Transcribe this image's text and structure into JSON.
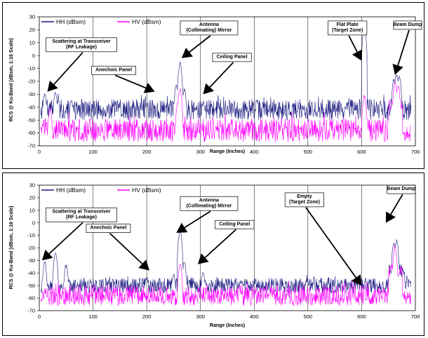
{
  "chart_data": [
    {
      "type": "line",
      "xlabel": "Range (Inches)",
      "ylabel": "RCS @ Ku-Band (dBsm, 1:16 Scale)",
      "xlim": [
        0,
        700
      ],
      "ylim": [
        -70,
        30
      ],
      "x_ticks": [
        0,
        100,
        200,
        300,
        400,
        500,
        600,
        700
      ],
      "y_ticks": [
        30,
        20,
        10,
        0,
        -10,
        -20,
        -30,
        -40,
        -50,
        -60,
        -70
      ],
      "grid": "vertical",
      "legend": "top-left",
      "series": [
        {
          "name": "HH (dBsm)",
          "color": "#1a1a80",
          "floor": -42,
          "spread": 8,
          "peaks": [
            [
              10,
              -28
            ],
            [
              30,
              -27
            ],
            [
              60,
              -33
            ],
            [
              200,
              -36
            ],
            [
              255,
              -22
            ],
            [
              262,
              -5
            ],
            [
              270,
              -25
            ],
            [
              305,
              -35
            ],
            [
              605,
              24
            ],
            [
              660,
              -17
            ],
            [
              665,
              -14
            ],
            [
              670,
              -15
            ]
          ]
        },
        {
          "name": "HV (dBsm)",
          "color": "#ff00ff",
          "floor": -58,
          "spread": 9,
          "peaks": [
            [
              20,
              -40
            ],
            [
              258,
              -35
            ],
            [
              262,
              -25
            ],
            [
              605,
              -30
            ],
            [
              662,
              -20
            ],
            [
              668,
              -22
            ]
          ]
        }
      ],
      "annotations": [
        {
          "lines": [
            "Scattering at Transceiver",
            "(RF Leakage)"
          ],
          "label_x": 15,
          "label_y": 10,
          "target_x": 15,
          "target_y": -28
        },
        {
          "lines": [
            "Anechoic  Panel"
          ],
          "label_x": 100,
          "label_y": -12,
          "target_x": 215,
          "target_y": -28
        },
        {
          "lines": [
            "Antenna",
            "(Collimating) Mirror"
          ],
          "label_x": 265,
          "label_y": 23,
          "target_x": 265,
          "target_y": -2
        },
        {
          "lines": [
            "Ceiling Panel"
          ],
          "label_x": 325,
          "label_y": -2,
          "target_x": 305,
          "target_y": -30
        },
        {
          "lines": [
            "Flat Plate",
            "(Target Zone)"
          ],
          "label_x": 540,
          "label_y": 23,
          "target_x": 600,
          "target_y": -4
        },
        {
          "lines": [
            "Beam Dump"
          ],
          "label_x": 662,
          "label_y": 23,
          "target_x": 662,
          "target_y": -15
        }
      ]
    },
    {
      "type": "line",
      "xlabel": "Range (Inches)",
      "ylabel": "RCS @ Ku-Band (dBsm, 1:16 Scale)",
      "xlim": [
        0,
        700
      ],
      "ylim": [
        -70,
        30
      ],
      "x_ticks": [
        0,
        100,
        200,
        300,
        400,
        500,
        600,
        700
      ],
      "y_ticks": [
        30,
        20,
        10,
        0,
        -10,
        -20,
        -30,
        -40,
        -50,
        -60,
        -70
      ],
      "grid": "vertical",
      "legend": "top-left",
      "series": [
        {
          "name": "HH (dBsm)",
          "color": "#1a1a80",
          "floor": -50,
          "spread": 6,
          "peaks": [
            [
              10,
              -30
            ],
            [
              30,
              -22
            ],
            [
              50,
              -32
            ],
            [
              200,
              -42
            ],
            [
              250,
              -40
            ],
            [
              262,
              -5
            ],
            [
              270,
              -30
            ],
            [
              305,
              -38
            ],
            [
              660,
              -15
            ],
            [
              665,
              -13
            ]
          ]
        },
        {
          "name": "HV (dBsm)",
          "color": "#ff00ff",
          "floor": -58,
          "spread": 8,
          "peaks": [
            [
              262,
              -32
            ],
            [
              662,
              -18
            ]
          ]
        }
      ],
      "annotations": [
        {
          "lines": [
            "Scattering at Transceiver",
            "(RF Leakage)"
          ],
          "label_x": 15,
          "label_y": 8,
          "target_x": 5,
          "target_y": -30
        },
        {
          "lines": [
            "Anechoic  Panel"
          ],
          "label_x": 90,
          "label_y": -5,
          "target_x": 205,
          "target_y": -38
        },
        {
          "lines": [
            "Antenna",
            "(Collimating) Mirror"
          ],
          "label_x": 265,
          "label_y": 17,
          "target_x": 255,
          "target_y": -8
        },
        {
          "lines": [
            "Ceiling Panel"
          ],
          "label_x": 330,
          "label_y": -2,
          "target_x": 295,
          "target_y": -33
        },
        {
          "lines": [
            "Empty",
            "(Target Zone)"
          ],
          "label_x": 460,
          "label_y": 20,
          "target_x": 600,
          "target_y": -50
        },
        {
          "lines": [
            "Beam Dump"
          ],
          "label_x": 650,
          "label_y": 26,
          "target_x": 645,
          "target_y": 0
        }
      ]
    }
  ]
}
